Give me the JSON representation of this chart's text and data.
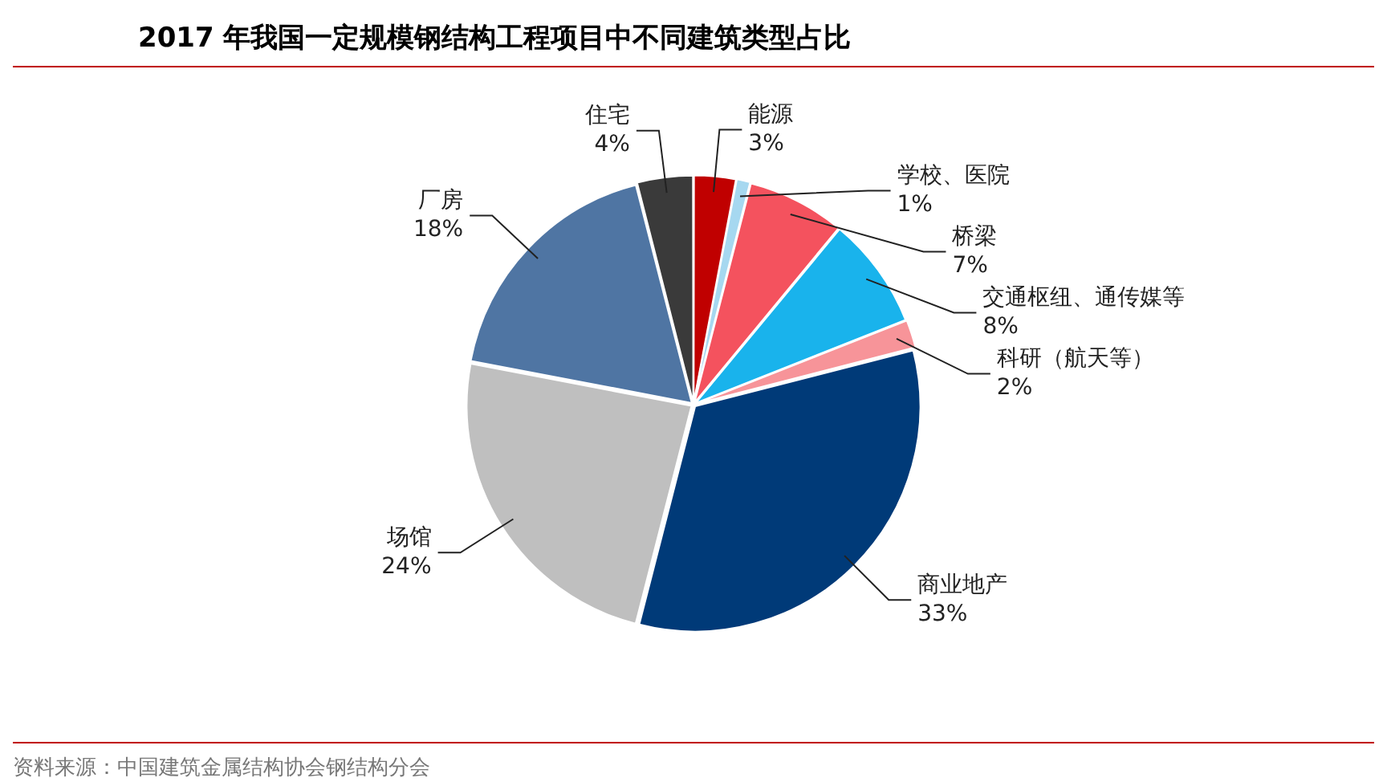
{
  "chart_data": {
    "type": "pie",
    "title": "2017 年我国一定规模钢结构工程项目中不同建筑类型占比",
    "categories": [
      "能源",
      "学校、医院",
      "桥梁",
      "交通枢纽、通传媒等",
      "科研（航天等）",
      "商业地产",
      "场馆",
      "厂房",
      "住宅"
    ],
    "values": [
      3,
      1,
      7,
      8,
      2,
      33,
      24,
      18,
      4
    ],
    "value_labels": [
      "3%",
      "1%",
      "7%",
      "8%",
      "2%",
      "33%",
      "24%",
      "18%",
      "4%"
    ],
    "colors": [
      "#c00000",
      "#a6d8f0",
      "#f4525e",
      "#19b3ec",
      "#f79499",
      "#003a78",
      "#bfbfbf",
      "#4f75a3",
      "#3a3a3a"
    ],
    "annotations": [
      "资料来源：中国建筑金属结构协会钢结构分会"
    ]
  }
}
